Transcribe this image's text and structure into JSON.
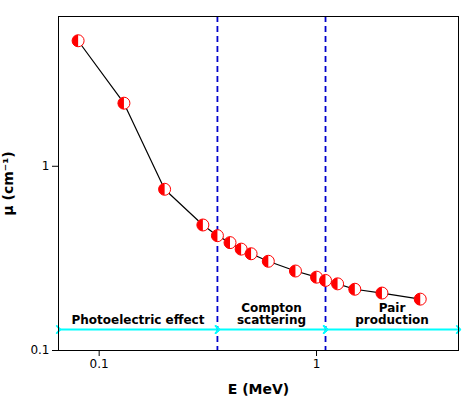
{
  "chart_data": {
    "type": "line",
    "title": "",
    "xlabel": "E (MeV)",
    "ylabel": "μ (cm⁻¹)",
    "log": true,
    "grid": false,
    "xlim": [
      0.065,
      4.5
    ],
    "ylim": [
      0.1,
      6.5
    ],
    "xticks": [
      0.1,
      1
    ],
    "yticks": [
      0.1,
      1
    ],
    "x": [
      0.08,
      0.13,
      0.2,
      0.3,
      0.35,
      0.4,
      0.45,
      0.5,
      0.6,
      0.8,
      1.0,
      1.1,
      1.25,
      1.5,
      2.0,
      3.0
    ],
    "series": [
      {
        "type": "line",
        "color": "black",
        "values": [
          4.8,
          2.2,
          0.75,
          0.48,
          0.42,
          0.385,
          0.355,
          0.335,
          0.305,
          0.27,
          0.25,
          0.24,
          0.23,
          0.215,
          0.205,
          0.19
        ]
      },
      {
        "type": "scatter",
        "color": "red",
        "marker": "half_circle",
        "values": [
          4.8,
          2.2,
          0.75,
          0.48,
          0.42,
          0.385,
          0.355,
          0.335,
          0.305,
          0.27,
          0.25,
          0.24,
          0.23,
          0.215,
          0.205,
          0.19
        ]
      }
    ],
    "annotations": [
      {
        "type": "vline",
        "x": 0.35,
        "color": "#0000CC",
        "line_style": "dashed"
      },
      {
        "type": "vline",
        "x": 1.1,
        "color": "#0000CC",
        "line_style": "dashed"
      },
      {
        "type": "arrow",
        "x": [
          0.065,
          0.35
        ],
        "y": 0.13,
        "color": "#00FFFF",
        "text": "Photoelectric effect"
      },
      {
        "type": "arrow",
        "x": [
          0.35,
          1.1
        ],
        "y": 0.13,
        "color": "#00FFFF",
        "text": "Compton\nscattering"
      },
      {
        "type": "arrow",
        "x": [
          1.1,
          4.5
        ],
        "y": 0.13,
        "color": "#00FFFF",
        "text": "Pair\nproduction"
      }
    ]
  }
}
